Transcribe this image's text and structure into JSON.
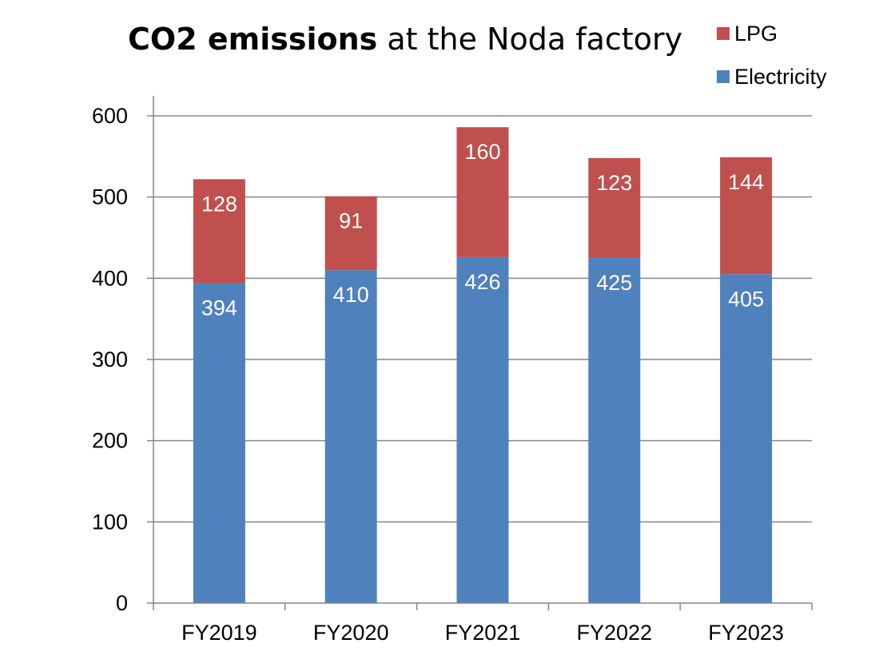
{
  "chart_data": {
    "type": "bar",
    "stacked": true,
    "title_bold": "CO2 emissions",
    "title_rest": " at the Noda factory",
    "xlabel": "",
    "ylabel": "",
    "categories": [
      "FY2019",
      "FY2020",
      "FY2021",
      "FY2022",
      "FY2023"
    ],
    "series": [
      {
        "name": "Electricity",
        "color": "#4F81BD",
        "values": [
          394,
          410,
          426,
          425,
          405
        ]
      },
      {
        "name": "LPG",
        "color": "#C0504D",
        "values": [
          128,
          91,
          160,
          123,
          144
        ]
      }
    ],
    "ylim": [
      0,
      600
    ],
    "yticks": [
      0,
      100,
      200,
      300,
      400,
      500,
      600
    ],
    "grid": true,
    "legend_position": "top-right",
    "legend_order": [
      "LPG",
      "Electricity"
    ]
  }
}
